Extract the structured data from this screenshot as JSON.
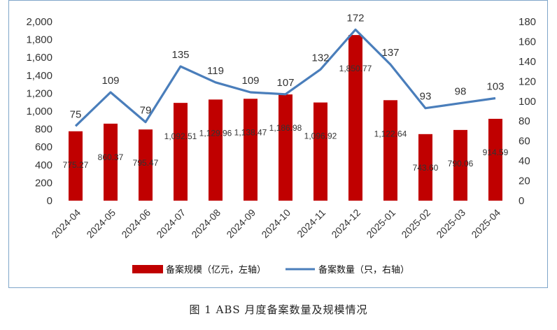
{
  "caption": "图 1  ABS 月度备案数量及规模情况",
  "chart_data": {
    "type": "bar",
    "categories": [
      "2024-04",
      "2024-05",
      "2024-06",
      "2024-07",
      "2024-08",
      "2024-09",
      "2024-10",
      "2024-11",
      "2024-12",
      "2025-01",
      "2025-02",
      "2025-03",
      "2025-04"
    ],
    "series": [
      {
        "name": "备案规模（亿元，左轴）",
        "type": "bar",
        "axis": "left",
        "color": "#c00000",
        "values": [
          775.27,
          860.37,
          795.47,
          1092.51,
          1129.96,
          1138.47,
          1186.98,
          1096.92,
          1850.77,
          1122.64,
          743.6,
          790.06,
          914.59
        ],
        "labels": [
          "775.27",
          "860.37",
          "795.47",
          "1,092.51",
          "1,129.96",
          "1,138.47",
          "1,186.98",
          "1,096.92",
          "1,850.77",
          "1,122.64",
          "743.60",
          "790.06",
          "914.59"
        ]
      },
      {
        "name": "备案数量（只，右轴）",
        "type": "line",
        "axis": "right",
        "color": "#4a7ebb",
        "values": [
          75,
          109,
          79,
          135,
          119,
          109,
          107,
          132,
          172,
          137,
          93,
          98,
          103
        ],
        "labels": [
          "75",
          "109",
          "79",
          "135",
          "119",
          "109",
          "107",
          "132",
          "172",
          "137",
          "93",
          "98",
          "103"
        ]
      }
    ],
    "y_left": {
      "min": 0,
      "max": 2000,
      "step": 200,
      "tick_labels": [
        "0",
        "200",
        "400",
        "600",
        "800",
        "1,000",
        "1,200",
        "1,400",
        "1,600",
        "1,800",
        "2,000"
      ]
    },
    "y_right": {
      "min": 0,
      "max": 180,
      "step": 20,
      "tick_labels": [
        "0",
        "20",
        "40",
        "60",
        "80",
        "100",
        "120",
        "140",
        "160",
        "180"
      ]
    },
    "grid": false,
    "legend_position": "bottom"
  }
}
